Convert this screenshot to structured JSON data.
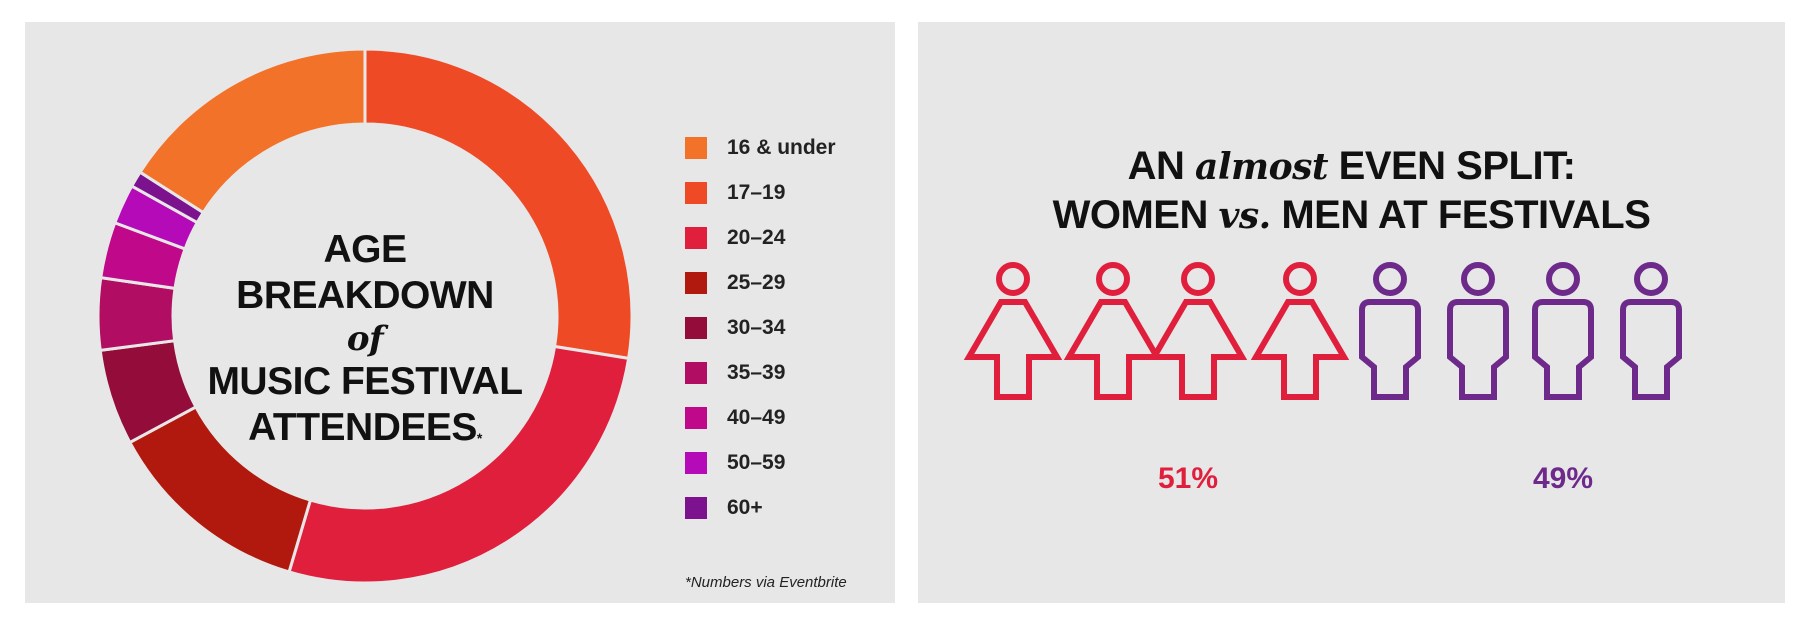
{
  "left": {
    "title_line1": "AGE BREAKDOWN",
    "title_of": "of",
    "title_line3": "MUSIC FESTIVAL",
    "title_line4": "ATTENDEES",
    "asterisk": "*",
    "footnote": "*Numbers via Eventbrite"
  },
  "right": {
    "title_an": "AN",
    "title_almost": "almost",
    "title_even_split": "EVEN SPLIT:",
    "title_women": "WOMEN",
    "title_vs": "vs.",
    "title_men": "MEN AT FESTIVALS",
    "women_pct": "51%",
    "men_pct": "49%",
    "women_color": "#e01f3d",
    "men_color": "#6d2a8a",
    "women_icons": 4,
    "men_icons": 4
  },
  "chart_data": {
    "type": "pie",
    "donut": true,
    "categories": [
      "16 & under",
      "17-19",
      "20-24",
      "25-29",
      "30-34",
      "35-39",
      "40-49",
      "50-59",
      "60+"
    ],
    "values": [
      16.5,
      28.5,
      28,
      13,
      6,
      4.5,
      3.5,
      2.5,
      1
    ],
    "colors": [
      "#f3722a",
      "#ef4a26",
      "#e01f3d",
      "#b1190e",
      "#930c3a",
      "#b10e63",
      "#c0088a",
      "#b40ab8",
      "#7c128d"
    ]
  },
  "legend_labels": [
    "16 & under",
    "17–19",
    "20–24",
    "25–29",
    "30–34",
    "35–39",
    "40–49",
    "50–59",
    "60+"
  ]
}
